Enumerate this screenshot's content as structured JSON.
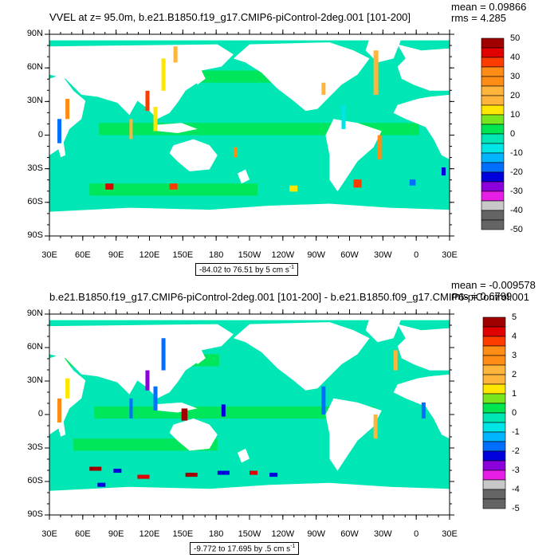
{
  "panel_top": {
    "title": "VVEL at z=  95.0m, b.e21.B1850.f19_g17.CMIP6-piControl-2deg.001 [101-200]",
    "mean_text": "mean = 0.09866",
    "rms_text": "rms = 4.285",
    "range_text": "-84.02 to 76.51 by 5 cm s",
    "range_unit_exp": "-1",
    "colorbar_labels": [
      "50",
      "40",
      "30",
      "20",
      "10",
      "0",
      "-10",
      "-20",
      "-30",
      "-40",
      "-50"
    ]
  },
  "panel_bottom": {
    "title": "b.e21.B1850.f19_g17.CMIP6-piControl-2deg.001 [101-200] - b.e21.B1850.f09_g17.CMIP6-piControl.001",
    "mean_text": "mean = -0.009578",
    "rms_text": "rms = 0.6799",
    "range_text": "-9.772 to 17.695 by .5 cm s",
    "range_unit_exp": "-1",
    "colorbar_labels": [
      "5",
      "4",
      "3",
      "2",
      "1",
      "0",
      "-1",
      "-2",
      "-3",
      "-4",
      "-5"
    ]
  },
  "lat_labels": [
    "90N",
    "60N",
    "30N",
    "0",
    "30S",
    "60S",
    "90S"
  ],
  "lon_labels": [
    "30E",
    "60E",
    "90E",
    "120E",
    "150E",
    "180",
    "150W",
    "120W",
    "90W",
    "60W",
    "30W",
    "0",
    "30E"
  ],
  "colorbar_colors": [
    "#a00000",
    "#e00000",
    "#ff3c00",
    "#ff8c14",
    "#ffb43c",
    "#ffe600",
    "#78e61e",
    "#00e650",
    "#00e6b4",
    "#00e6e6",
    "#00b4ff",
    "#006eff",
    "#0000dc",
    "#8c00dc",
    "#e61ee6",
    "#c8c8c8",
    "#646464"
  ],
  "land_color": "#ffffff",
  "ocean_base_color": "#00e6b4",
  "ocean_alt_color": "#00e650"
}
